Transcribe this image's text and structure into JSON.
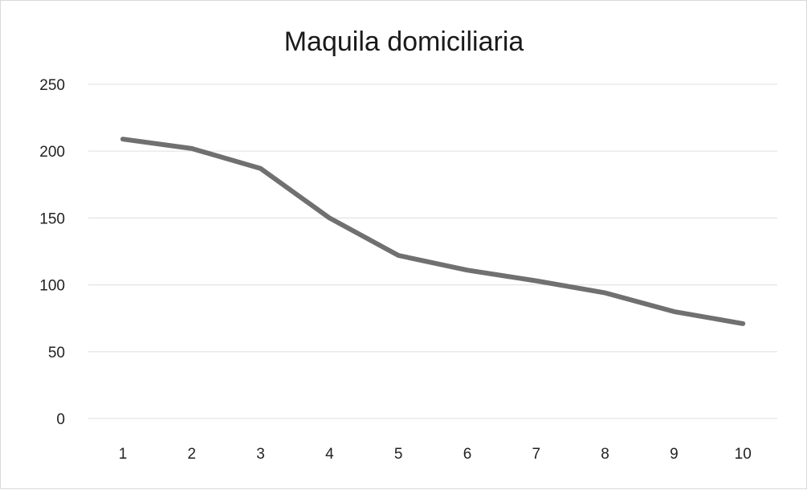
{
  "chart_data": {
    "type": "line",
    "title": "Maquila domiciliaria",
    "xlabel": "",
    "ylabel": "",
    "x": [
      1,
      2,
      3,
      4,
      5,
      6,
      7,
      8,
      9,
      10
    ],
    "series": [
      {
        "values": [
          209,
          202,
          187,
          150,
          122,
          111,
          103,
          94,
          80,
          71
        ],
        "color": "#707070"
      }
    ],
    "ylim": [
      0,
      250
    ],
    "yticks": [
      0,
      50,
      100,
      150,
      200,
      250
    ],
    "grid": true,
    "legend": "none"
  }
}
